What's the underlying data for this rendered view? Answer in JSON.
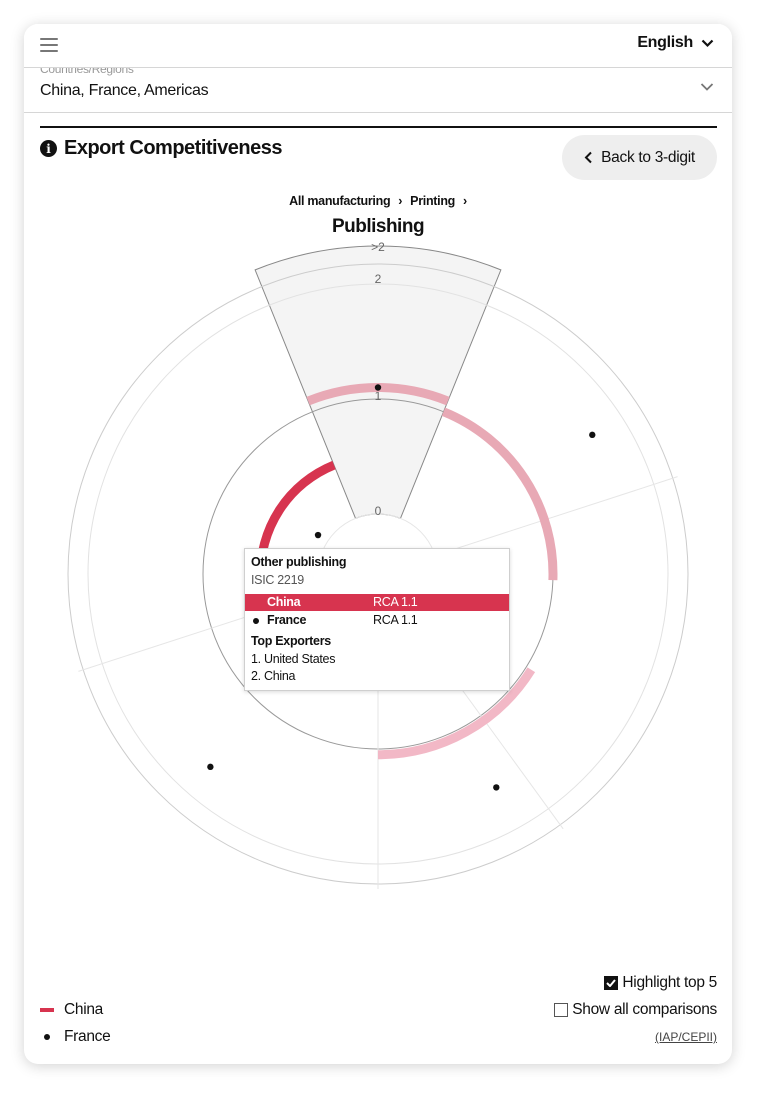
{
  "header": {
    "language": "English"
  },
  "selector": {
    "cut_label": "Countries/Regions",
    "value": "China, France, Americas"
  },
  "section": {
    "title": "Export Competitiveness",
    "back_button": "Back to 3-digit"
  },
  "breadcrumb": {
    "items": [
      "All manufacturing",
      "Printing"
    ],
    "current": "Publishing"
  },
  "chart_data": {
    "type": "radial",
    "ring_labels": [
      ">2",
      "2",
      "1",
      "0"
    ],
    "series": [
      {
        "name": "China",
        "kind": "arc",
        "color": "#d7344f",
        "values": [
          1.1,
          1.0,
          1.05,
          0.4,
          0.5
        ]
      },
      {
        "name": "France",
        "kind": "dot",
        "color": "#111111",
        "values": [
          1.1,
          1.7,
          1.6,
          1.7,
          0.1
        ]
      }
    ],
    "highlighted_sector": "Other publishing"
  },
  "tooltip": {
    "title": "Other publishing",
    "code": "ISIC 2219",
    "rows": [
      {
        "name": "China",
        "value": "RCA 1.1"
      },
      {
        "name": "France",
        "value": "RCA 1.1"
      }
    ],
    "top_exporters_label": "Top Exporters",
    "top_exporters": [
      "1. United States",
      "2. China"
    ]
  },
  "legend": {
    "china": "China",
    "france": "France"
  },
  "options": {
    "highlight_top5": "Highlight top 5",
    "show_all": "Show all comparisons",
    "highlight_checked": true,
    "show_all_checked": false
  },
  "source": "(IAP/CEPII)"
}
